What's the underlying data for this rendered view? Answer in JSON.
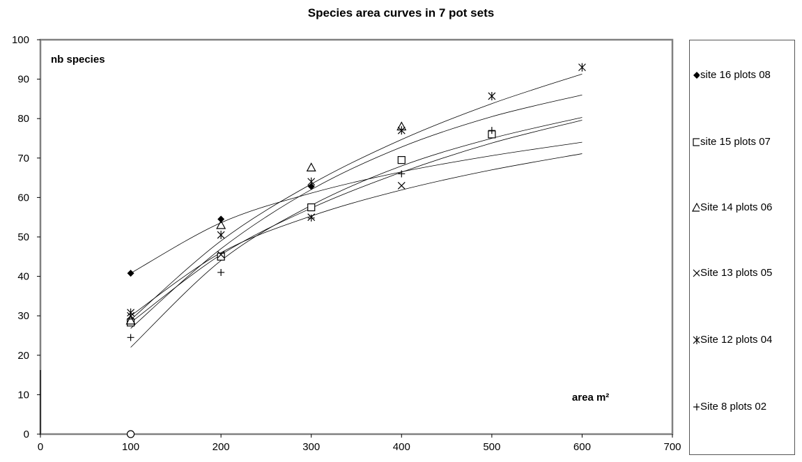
{
  "chart_data": {
    "type": "scatter",
    "title": "Species area curves in 7 pot sets",
    "xlabel": "area m²",
    "ylabel": "nb species",
    "xlim": [
      0,
      700
    ],
    "ylim": [
      0,
      100
    ],
    "x_ticks": [
      "0",
      "100",
      "200",
      "300",
      "400",
      "500",
      "600",
      "700"
    ],
    "y_ticks": [
      "0",
      "10",
      "20",
      "30",
      "40",
      "50",
      "60",
      "70",
      "80",
      "90",
      "100"
    ],
    "grid": false,
    "legend_position": "right",
    "series": [
      {
        "name": "site 16 plots 08",
        "marker": "filled-diamond",
        "points": [
          [
            100,
            40.8
          ],
          [
            200,
            54.5
          ],
          [
            300,
            62.8
          ]
        ],
        "trend": [
          [
            100,
            40.8
          ],
          [
            200,
            53.6
          ],
          [
            300,
            61.1
          ],
          [
            400,
            66.5
          ],
          [
            500,
            70.6
          ],
          [
            600,
            74
          ]
        ]
      },
      {
        "name": "site 15 plots 07",
        "marker": "square",
        "points": [
          [
            100,
            28.3
          ],
          [
            200,
            45
          ],
          [
            300,
            57.5
          ],
          [
            400,
            69.5
          ],
          [
            500,
            76
          ]
        ],
        "trend": [
          [
            100,
            28.3
          ],
          [
            200,
            45.5
          ],
          [
            300,
            57.3
          ],
          [
            400,
            66.4
          ],
          [
            500,
            73.8
          ],
          [
            600,
            79.6
          ]
        ]
      },
      {
        "name": "Site 14 plots 06",
        "marker": "triangle",
        "points": [
          [
            100,
            28.8
          ],
          [
            200,
            53
          ],
          [
            300,
            67.6
          ],
          [
            400,
            78
          ]
        ],
        "trend": [
          [
            100,
            26.8
          ],
          [
            200,
            47
          ],
          [
            300,
            62
          ],
          [
            400,
            72.8
          ],
          [
            500,
            80.5
          ],
          [
            600,
            86
          ]
        ]
      },
      {
        "name": "Site 13 plots 05",
        "marker": "x",
        "points": [
          [
            100,
            30
          ],
          [
            200,
            45.5
          ],
          [
            300,
            55
          ],
          [
            400,
            63
          ]
        ],
        "trend": [
          [
            100,
            30
          ],
          [
            200,
            46
          ],
          [
            300,
            55.3
          ],
          [
            400,
            61.9
          ],
          [
            500,
            67
          ],
          [
            600,
            71.1
          ]
        ]
      },
      {
        "name": "Site 12 plots 04",
        "marker": "asterisk",
        "points": [
          [
            100,
            30.8
          ],
          [
            200,
            50.5
          ],
          [
            300,
            64
          ],
          [
            400,
            77
          ],
          [
            500,
            85.7
          ],
          [
            600,
            93
          ]
        ],
        "trend": [
          [
            100,
            29
          ],
          [
            200,
            49
          ],
          [
            300,
            63.4
          ],
          [
            400,
            74.7
          ],
          [
            500,
            83.8
          ],
          [
            600,
            91.3
          ]
        ]
      },
      {
        "name": "Site 8 plots 02",
        "marker": "plus",
        "points": [
          [
            100,
            24.5
          ],
          [
            200,
            41
          ],
          [
            300,
            54.8
          ],
          [
            400,
            66
          ],
          [
            500,
            77
          ]
        ],
        "trend": [
          [
            100,
            22
          ],
          [
            200,
            44
          ],
          [
            300,
            58
          ],
          [
            400,
            68
          ],
          [
            500,
            75
          ],
          [
            600,
            80.3
          ]
        ]
      }
    ],
    "extra_points": [
      {
        "marker": "open-circle",
        "x": 100,
        "y": 0
      }
    ]
  }
}
